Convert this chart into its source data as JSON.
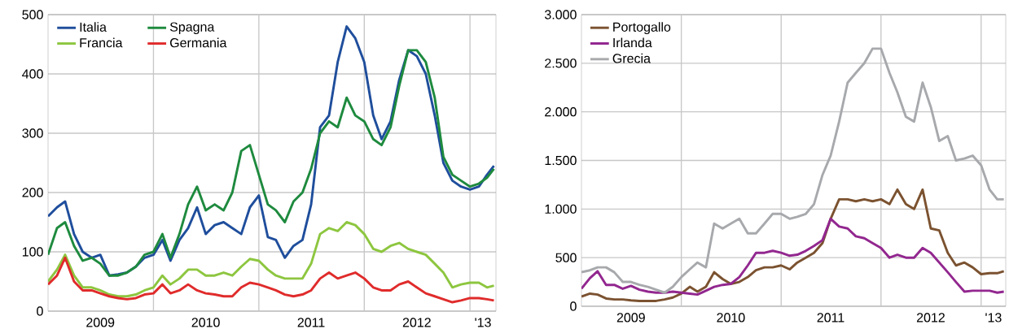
{
  "chart_data": [
    {
      "type": "line",
      "x": [
        "2009-01",
        "2009-02",
        "2009-03",
        "2009-04",
        "2009-05",
        "2009-06",
        "2009-07",
        "2009-08",
        "2009-09",
        "2009-10",
        "2009-11",
        "2009-12",
        "2010-01",
        "2010-02",
        "2010-03",
        "2010-04",
        "2010-05",
        "2010-06",
        "2010-07",
        "2010-08",
        "2010-09",
        "2010-10",
        "2010-11",
        "2010-12",
        "2011-01",
        "2011-02",
        "2011-03",
        "2011-04",
        "2011-05",
        "2011-06",
        "2011-07",
        "2011-08",
        "2011-09",
        "2011-10",
        "2011-11",
        "2011-12",
        "2012-01",
        "2012-02",
        "2012-03",
        "2012-04",
        "2012-05",
        "2012-06",
        "2012-07",
        "2012-08",
        "2012-09",
        "2012-10",
        "2012-11",
        "2012-12",
        "2013-01",
        "2013-02",
        "2013-03",
        "2013-03-25"
      ],
      "series": [
        {
          "name": "Italia",
          "color": "#1f4e9c",
          "values": [
            160,
            175,
            185,
            130,
            100,
            90,
            95,
            60,
            62,
            65,
            75,
            90,
            95,
            120,
            85,
            120,
            140,
            175,
            130,
            145,
            150,
            140,
            130,
            175,
            195,
            125,
            120,
            90,
            110,
            120,
            180,
            310,
            330,
            420,
            480,
            460,
            420,
            330,
            290,
            320,
            390,
            440,
            430,
            400,
            330,
            250,
            220,
            210,
            205,
            210,
            230,
            245
          ]
        },
        {
          "name": "Spagna",
          "color": "#1e8a3e",
          "values": [
            95,
            140,
            150,
            110,
            85,
            90,
            80,
            60,
            60,
            65,
            75,
            95,
            100,
            130,
            90,
            130,
            180,
            210,
            170,
            180,
            170,
            200,
            270,
            280,
            230,
            180,
            170,
            150,
            185,
            200,
            240,
            300,
            320,
            310,
            360,
            330,
            320,
            290,
            280,
            310,
            380,
            440,
            440,
            420,
            360,
            260,
            230,
            220,
            210,
            215,
            225,
            240
          ]
        },
        {
          "name": "Francia",
          "color": "#8dc63f",
          "values": [
            50,
            70,
            95,
            60,
            40,
            40,
            35,
            28,
            25,
            25,
            28,
            35,
            40,
            60,
            45,
            55,
            70,
            70,
            60,
            60,
            65,
            60,
            75,
            88,
            85,
            70,
            60,
            55,
            55,
            55,
            80,
            130,
            140,
            135,
            150,
            145,
            130,
            105,
            100,
            110,
            115,
            105,
            100,
            95,
            80,
            65,
            40,
            45,
            48,
            48,
            40,
            43
          ]
        },
        {
          "name": "Germania",
          "color": "#e02b2b",
          "values": [
            45,
            60,
            90,
            50,
            35,
            35,
            30,
            25,
            22,
            20,
            22,
            28,
            30,
            45,
            30,
            35,
            45,
            35,
            30,
            28,
            25,
            25,
            40,
            48,
            45,
            40,
            35,
            28,
            25,
            28,
            35,
            55,
            65,
            55,
            60,
            65,
            55,
            40,
            35,
            35,
            45,
            50,
            40,
            30,
            25,
            20,
            15,
            18,
            22,
            22,
            20,
            18
          ]
        }
      ],
      "xlim": [
        "2009-01-01",
        "2013-04-01"
      ],
      "xticks": [
        {
          "value": "2009-07-01",
          "label": "2009"
        },
        {
          "value": "2010-07-01",
          "label": "2010"
        },
        {
          "value": "2011-07-01",
          "label": "2011"
        },
        {
          "value": "2012-07-01",
          "label": "2012"
        },
        {
          "value": "2013-02-15",
          "label": "'13"
        },
        {
          "value": "2010-01-01",
          "label": null
        },
        {
          "value": "2011-01-01",
          "label": null
        },
        {
          "value": "2012-01-01",
          "label": null
        },
        {
          "value": "2013-01-01",
          "label": null
        }
      ],
      "ylim": [
        0,
        500
      ],
      "yticks": [
        0,
        100,
        200,
        300,
        400,
        500
      ],
      "grid": true,
      "legend": "top left",
      "line_style": "solid",
      "marker": "none"
    },
    {
      "type": "line",
      "x": [
        "2009-01",
        "2009-02",
        "2009-03",
        "2009-04",
        "2009-05",
        "2009-06",
        "2009-07",
        "2009-08",
        "2009-09",
        "2009-10",
        "2009-11",
        "2009-12",
        "2010-01",
        "2010-02",
        "2010-03",
        "2010-04",
        "2010-05",
        "2010-06",
        "2010-07",
        "2010-08",
        "2010-09",
        "2010-10",
        "2010-11",
        "2010-12",
        "2011-01",
        "2011-02",
        "2011-03",
        "2011-04",
        "2011-05",
        "2011-06",
        "2011-07",
        "2011-08",
        "2011-09",
        "2011-10",
        "2011-11",
        "2011-12",
        "2012-01",
        "2012-02",
        "2012-03",
        "2012-04",
        "2012-05",
        "2012-06",
        "2012-07",
        "2012-08",
        "2012-09",
        "2012-10",
        "2012-11",
        "2012-12",
        "2013-01",
        "2013-02",
        "2013-03",
        "2013-03-25"
      ],
      "series": [
        {
          "name": "Portogallo",
          "color": "#7b5230",
          "values": [
            100,
            130,
            120,
            80,
            70,
            70,
            60,
            55,
            55,
            55,
            70,
            90,
            130,
            200,
            150,
            200,
            350,
            280,
            230,
            250,
            300,
            370,
            400,
            400,
            420,
            380,
            450,
            500,
            550,
            650,
            900,
            1100,
            1100,
            1080,
            1100,
            1080,
            1100,
            1050,
            1200,
            1050,
            1000,
            1200,
            800,
            780,
            550,
            420,
            450,
            400,
            330,
            340,
            340,
            360
          ]
        },
        {
          "name": "Irlanda",
          "color": "#92278f",
          "values": [
            180,
            290,
            360,
            220,
            220,
            180,
            210,
            170,
            150,
            140,
            140,
            150,
            140,
            130,
            120,
            160,
            200,
            220,
            230,
            300,
            420,
            550,
            550,
            570,
            550,
            520,
            530,
            570,
            620,
            680,
            900,
            820,
            800,
            720,
            700,
            650,
            600,
            500,
            530,
            500,
            500,
            600,
            550,
            450,
            350,
            250,
            150,
            160,
            160,
            160,
            140,
            150
          ]
        },
        {
          "name": "Grecia",
          "color": "#a7a9ac",
          "values": [
            350,
            370,
            400,
            400,
            350,
            250,
            250,
            220,
            200,
            170,
            140,
            200,
            300,
            380,
            450,
            400,
            850,
            800,
            850,
            900,
            750,
            750,
            850,
            950,
            950,
            900,
            920,
            950,
            1050,
            1350,
            1550,
            1900,
            2300,
            2400,
            2500,
            2650,
            2650,
            2400,
            2200,
            1950,
            1900,
            2300,
            2050,
            1700,
            1750,
            1500,
            1520,
            1550,
            1450,
            1200,
            1100,
            1100
          ]
        }
      ],
      "xlim": [
        "2009-01-01",
        "2013-04-01"
      ],
      "xticks": [
        {
          "value": "2009-07-01",
          "label": "2009"
        },
        {
          "value": "2010-07-01",
          "label": "2010"
        },
        {
          "value": "2011-07-01",
          "label": "2011"
        },
        {
          "value": "2012-07-01",
          "label": "2012"
        },
        {
          "value": "2013-02-15",
          "label": "'13"
        },
        {
          "value": "2010-01-01",
          "label": null
        },
        {
          "value": "2011-01-01",
          "label": null
        },
        {
          "value": "2012-01-01",
          "label": null
        },
        {
          "value": "2013-01-01",
          "label": null
        }
      ],
      "ylim": [
        0,
        3000
      ],
      "yticks": [
        0,
        {
          "value": 500,
          "label": "500"
        },
        {
          "value": 1000,
          "label": "1.000"
        },
        {
          "value": 1500,
          "label": "1.500"
        },
        {
          "value": 2000,
          "label": "2.000"
        },
        {
          "value": 2500,
          "label": "2.500"
        },
        {
          "value": 3000,
          "label": "3.000"
        }
      ],
      "grid": true,
      "legend": "top left",
      "line_style": "solid",
      "marker": "none"
    }
  ]
}
